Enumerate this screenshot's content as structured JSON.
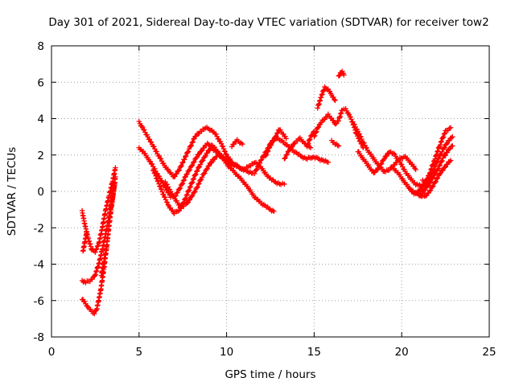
{
  "chart_data": {
    "type": "scatter",
    "title": "Day 301 of 2021, Sidereal Day-to-day VTEC variation (SDTVAR) for receiver tow2",
    "xlabel": "GPS time / hours",
    "ylabel": "SDTVAR / TECUs",
    "xlim": [
      0,
      25
    ],
    "ylim": [
      -8,
      8
    ],
    "x_ticks": [
      0,
      5,
      10,
      15,
      20,
      25
    ],
    "y_ticks": [
      -8,
      -6,
      -4,
      -2,
      0,
      2,
      4,
      6,
      8
    ],
    "grid": true,
    "legend": "none",
    "marker": "plus",
    "color": "#ff0000",
    "series": [
      {
        "x": [
          1.75,
          1.9,
          2.1,
          2.3,
          2.5,
          2.7,
          2.9,
          3.1,
          3.3,
          3.5,
          3.65
        ],
        "y": [
          -1.1,
          -1.8,
          -2.6,
          -3.2,
          -3.3,
          -2.9,
          -2.0,
          -1.0,
          -0.2,
          0.6,
          1.3
        ]
      },
      {
        "x": [
          1.75,
          1.95,
          2.2,
          2.45,
          2.7,
          2.9,
          3.1,
          3.3,
          3.5,
          3.65
        ],
        "y": [
          -4.9,
          -5.0,
          -4.9,
          -4.7,
          -4.0,
          -3.2,
          -2.3,
          -1.3,
          -0.3,
          0.8
        ]
      },
      {
        "x": [
          1.75,
          1.9,
          2.1,
          2.3,
          2.45,
          2.6,
          2.8,
          3.0,
          3.2,
          3.4,
          3.6
        ],
        "y": [
          -5.9,
          -6.1,
          -6.4,
          -6.6,
          -6.7,
          -6.4,
          -5.5,
          -4.2,
          -2.6,
          -1.0,
          0.4
        ]
      },
      {
        "x": [
          1.8,
          1.9,
          2.0
        ],
        "y": [
          -3.3,
          -2.8,
          -2.3
        ]
      },
      {
        "x": [
          2.85,
          3.0,
          3.15
        ],
        "y": [
          -4.6,
          -3.8,
          -3.1
        ]
      },
      {
        "x": [
          5.0,
          5.2,
          5.5,
          5.8,
          6.1,
          6.4,
          6.7,
          7.0,
          7.3,
          7.6,
          7.9,
          8.2,
          8.5,
          8.8,
          9.1,
          9.4,
          9.7,
          10.0,
          10.3
        ],
        "y": [
          3.8,
          3.5,
          3.0,
          2.5,
          2.0,
          1.5,
          1.1,
          0.8,
          1.2,
          1.8,
          2.4,
          3.0,
          3.3,
          3.5,
          3.4,
          3.1,
          2.6,
          2.0,
          1.6
        ]
      },
      {
        "x": [
          5.0,
          5.3,
          5.6,
          5.9,
          6.2,
          6.5,
          6.8,
          7.1,
          7.4,
          7.7,
          8.0,
          8.3,
          8.6,
          8.9,
          9.2,
          9.5,
          9.8,
          10.1,
          10.4,
          10.7,
          11.0,
          11.3,
          11.6,
          11.9,
          12.2,
          12.5,
          12.7
        ],
        "y": [
          2.4,
          2.1,
          1.7,
          1.2,
          0.7,
          0.2,
          -0.3,
          -0.2,
          0.3,
          0.9,
          1.4,
          1.9,
          2.3,
          2.6,
          2.5,
          2.2,
          1.8,
          1.4,
          1.1,
          0.8,
          0.5,
          0.1,
          -0.3,
          -0.6,
          -0.8,
          -1.0,
          -1.1
        ]
      },
      {
        "x": [
          5.8,
          6.1,
          6.4,
          6.7,
          7.0,
          7.3,
          7.6,
          7.9,
          8.2,
          8.5,
          8.8,
          9.1,
          9.4,
          9.7,
          10.0,
          10.3,
          10.6,
          10.9,
          11.2,
          11.5
        ],
        "y": [
          1.2,
          0.5,
          -0.2,
          -0.8,
          -1.2,
          -1.0,
          -0.5,
          0.2,
          0.9,
          1.5,
          2.0,
          2.4,
          2.2,
          1.9,
          1.6,
          1.5,
          1.4,
          1.2,
          1.1,
          1.0
        ]
      },
      {
        "x": [
          6.5,
          6.8,
          7.1,
          7.4,
          7.7,
          8.0,
          8.3,
          8.6,
          8.9,
          9.2,
          9.5,
          9.8,
          10.1,
          10.4,
          10.7,
          11.0,
          11.3,
          11.6,
          11.9,
          12.2,
          12.5,
          12.8,
          13.1,
          13.3
        ],
        "y": [
          0.5,
          0.0,
          -0.5,
          -0.9,
          -0.7,
          -0.3,
          0.2,
          0.8,
          1.3,
          1.7,
          2.0,
          1.9,
          1.7,
          1.5,
          1.3,
          1.2,
          1.4,
          1.6,
          1.4,
          1.0,
          0.7,
          0.5,
          0.4,
          0.4
        ]
      },
      {
        "x": [
          11.6,
          11.9,
          12.2,
          12.5,
          12.8,
          13.1,
          13.4,
          13.7,
          14.0,
          14.3,
          14.6,
          14.9,
          15.2,
          15.5,
          15.8
        ],
        "y": [
          1.0,
          1.6,
          2.1,
          2.6,
          3.0,
          2.8,
          2.6,
          2.3,
          2.1,
          1.9,
          1.8,
          1.9,
          1.8,
          1.7,
          1.6
        ]
      },
      {
        "x": [
          12.2,
          12.5,
          12.8,
          13.0,
          13.2,
          13.4
        ],
        "y": [
          1.9,
          2.5,
          3.0,
          3.4,
          3.2,
          2.9
        ]
      },
      {
        "x": [
          13.3,
          13.6,
          13.9,
          14.2,
          14.5,
          14.8
        ],
        "y": [
          1.8,
          2.3,
          2.7,
          2.9,
          2.6,
          2.4
        ]
      },
      {
        "x": [
          10.3,
          10.6,
          10.9
        ],
        "y": [
          2.5,
          2.8,
          2.6
        ]
      },
      {
        "x": [
          15.0,
          15.2,
          15.4,
          15.6,
          15.8,
          16.0,
          16.2,
          16.4,
          16.6,
          16.8,
          17.0,
          17.2,
          17.4,
          17.6,
          17.8
        ],
        "y": [
          3.0,
          3.5,
          3.8,
          4.0,
          4.2,
          4.0,
          3.7,
          3.9,
          4.5,
          4.5,
          4.2,
          3.8,
          3.2,
          2.8,
          2.4
        ]
      },
      {
        "x": [
          15.2,
          15.4,
          15.6,
          15.8,
          16.0,
          16.2
        ],
        "y": [
          4.6,
          5.2,
          5.7,
          5.6,
          5.3,
          5.0
        ]
      },
      {
        "x": [
          16.4,
          16.5,
          16.6,
          16.7
        ],
        "y": [
          6.3,
          6.5,
          6.6,
          6.4
        ]
      },
      {
        "x": [
          16.0,
          16.2,
          16.4
        ],
        "y": [
          2.8,
          2.6,
          2.5
        ]
      },
      {
        "x": [
          14.6,
          14.8,
          15.0
        ],
        "y": [
          2.5,
          3.0,
          3.3
        ]
      },
      {
        "x": [
          17.2,
          17.5,
          17.8,
          18.1,
          18.4,
          18.7,
          19.0,
          19.3,
          19.6,
          19.9,
          20.2,
          20.5,
          20.8
        ],
        "y": [
          3.8,
          3.3,
          2.7,
          2.2,
          1.8,
          1.4,
          1.1,
          1.2,
          1.5,
          1.8,
          1.9,
          1.6,
          1.2
        ]
      },
      {
        "x": [
          17.5,
          17.8,
          18.1,
          18.4,
          18.7,
          19.0,
          19.3,
          19.6,
          19.9,
          20.2,
          20.5,
          20.8,
          21.1
        ],
        "y": [
          2.2,
          1.8,
          1.4,
          1.0,
          1.3,
          1.8,
          2.2,
          2.0,
          1.6,
          1.1,
          0.7,
          0.4,
          0.3
        ]
      },
      {
        "x": [
          19.5,
          19.8,
          20.1,
          20.4,
          20.7,
          21.0,
          21.3,
          21.6,
          21.9,
          22.2,
          22.5,
          22.8
        ],
        "y": [
          1.3,
          1.0,
          0.6,
          0.2,
          -0.1,
          0.0,
          0.4,
          1.0,
          1.8,
          2.6,
          3.3,
          3.5
        ]
      },
      {
        "x": [
          20.5,
          20.8,
          21.1,
          21.4,
          21.7,
          22.0,
          22.3,
          22.6,
          22.9
        ],
        "y": [
          0.1,
          -0.1,
          -0.2,
          0.2,
          0.9,
          1.6,
          2.2,
          2.7,
          3.0
        ]
      },
      {
        "x": [
          21.0,
          21.3,
          21.6,
          21.9,
          22.2,
          22.5,
          22.8
        ],
        "y": [
          -0.2,
          -0.3,
          0.0,
          0.5,
          1.0,
          1.4,
          1.7
        ]
      },
      {
        "x": [
          21.2,
          21.5,
          21.8,
          22.1,
          22.4,
          22.7,
          22.9
        ],
        "y": [
          0.6,
          0.3,
          0.8,
          1.3,
          1.9,
          2.3,
          2.5
        ]
      }
    ]
  }
}
